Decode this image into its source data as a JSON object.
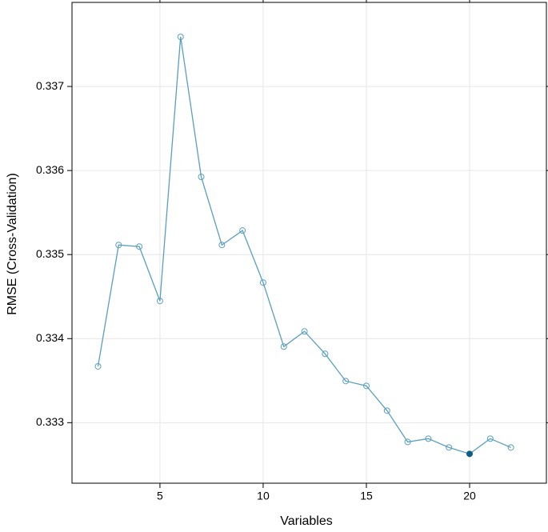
{
  "chart_data": {
    "type": "line",
    "xlabel": "Variables",
    "ylabel": "RMSE (Cross-Validation)",
    "x": [
      2,
      3,
      4,
      5,
      6,
      7,
      8,
      9,
      10,
      11,
      12,
      13,
      14,
      15,
      16,
      17,
      18,
      19,
      20,
      21,
      22
    ],
    "series": [
      {
        "color": "#5a9fbf",
        "values": [
          0.33367,
          0.335114,
          0.335095,
          0.334448,
          0.33759,
          0.335924,
          0.335114,
          0.335286,
          0.334667,
          0.333905,
          0.334086,
          0.333819,
          0.333495,
          0.333438,
          0.333143,
          0.332771,
          0.33281,
          0.332705,
          0.332629,
          0.33281,
          0.332705
        ]
      }
    ],
    "highlight_x": 20,
    "highlight_color": "#0f5c8a",
    "xlim": [
      0.74,
      23.72
    ],
    "xticks": [
      5,
      10,
      15,
      20
    ],
    "ylim": [
      0.33228,
      0.338
    ],
    "yticks": [
      0.333,
      0.334,
      0.335,
      0.336,
      0.337
    ],
    "grid": true
  }
}
